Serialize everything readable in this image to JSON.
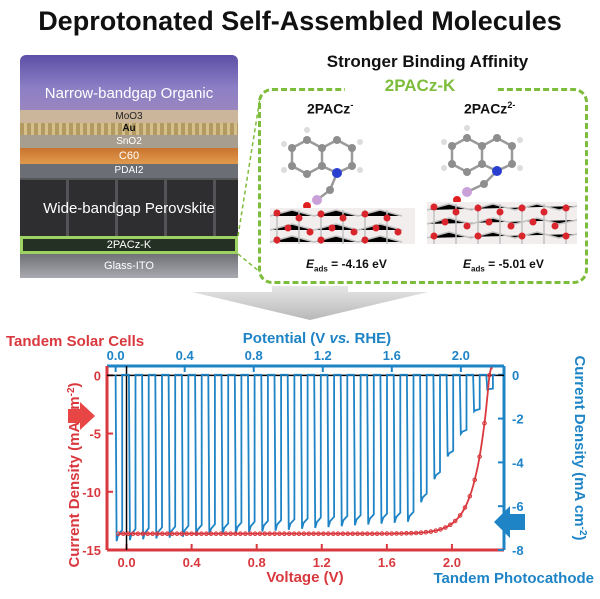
{
  "title": "Deprotonated Self-Assembled Molecules",
  "subtitle": "Stronger Binding Affinity",
  "stack": {
    "layers": [
      {
        "label": "Narrow-bandgap Organic",
        "color": "#7c6fb4"
      },
      {
        "label": "MoO3",
        "color": "#c7b39c"
      },
      {
        "label": "Au",
        "color": "#b89d6c"
      },
      {
        "label": "SnO2",
        "color": "#a59a8c"
      },
      {
        "label": "C60",
        "color": "#d0803a"
      },
      {
        "label": "PDAI2",
        "color": "#6a6c74"
      },
      {
        "label": "Wide-bandgap Perovskite",
        "color": "#3a3a3c"
      },
      {
        "label": "2PACz-K",
        "color": "#2c3a2a"
      },
      {
        "label": "Glass-ITO",
        "color": "#8a8c92"
      }
    ]
  },
  "inset": {
    "label": "2PACz-K",
    "molecules": [
      {
        "name": "2PACz",
        "charge": "-",
        "eads_symbol": "E",
        "eads_sub": "ads",
        "eads_value": "= -4.16 eV"
      },
      {
        "name": "2PACz",
        "charge": "2-",
        "eads_symbol": "E",
        "eads_sub": "ads",
        "eads_value": "= -5.01 eV"
      }
    ]
  },
  "legend": {
    "solar": "Tandem Solar Cells",
    "photocathode": "Tandem Photocathode"
  },
  "colors": {
    "red": "#d9393e",
    "blue": "#1e84c6",
    "green": "#7dbd3b"
  },
  "chart_data": {
    "type": "line",
    "top_axis": {
      "label_pre": "Potential (V ",
      "label_italic": "vs.",
      "label_post": " RHE)",
      "range": [
        -0.05,
        2.25
      ],
      "ticks": [
        "0.0",
        "0.4",
        "0.8",
        "1.2",
        "1.6",
        "2.0"
      ]
    },
    "bottom_axis": {
      "label": "Voltage (V)",
      "range": [
        -0.12,
        2.32
      ],
      "ticks": [
        "0.0",
        "0.4",
        "0.8",
        "1.2",
        "1.6",
        "2.0"
      ]
    },
    "left_axis": {
      "label_pre": "Current Density (mA cm",
      "label_sup": "-2",
      "label_post": ")",
      "range": [
        -15,
        0.8
      ],
      "ticks": [
        "0",
        "-5",
        "-10",
        "-15"
      ]
    },
    "right_axis": {
      "label_pre": "Current Density (mA cm",
      "label_sup": "-2",
      "label_post": ")",
      "range": [
        -8,
        0.4
      ],
      "ticks": [
        "0",
        "-2",
        "-4",
        "-6",
        "-8"
      ]
    },
    "series": [
      {
        "axis": "left-bottom",
        "jv": {
          "jsc": -13.6,
          "voc": 2.23,
          "knee": 1.9,
          "sharpness": 12
        }
      },
      {
        "axis": "right-top",
        "chopped": {
          "start": 0.0,
          "end": 2.2,
          "period": 0.0767,
          "dark": 0.0,
          "light_start": -7.3,
          "light_end": -6.2,
          "onset_fade_start": 1.7,
          "onset_end": 2.2
        }
      }
    ]
  }
}
